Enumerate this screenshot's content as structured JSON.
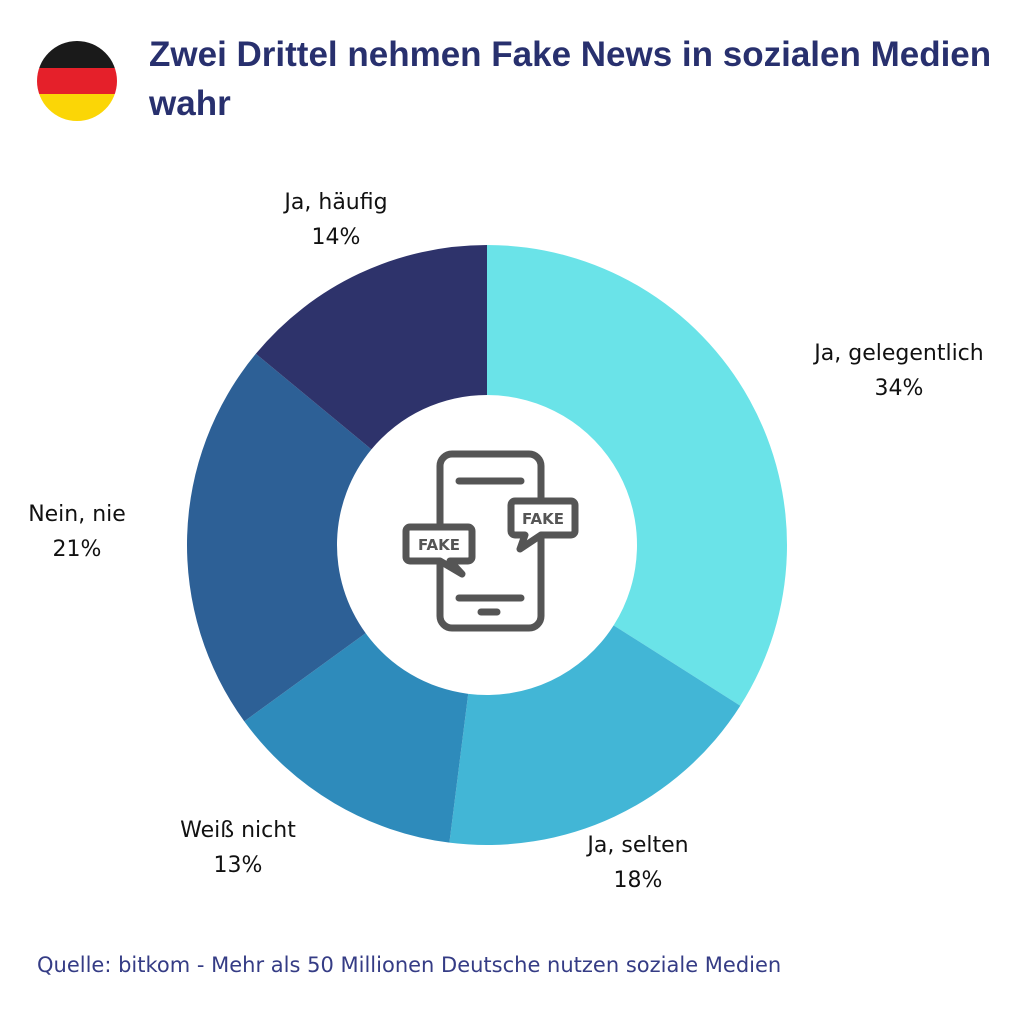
{
  "title": "Zwei Drittel nehmen Fake News in sozialen Medien wahr",
  "flag_colors": [
    "#1a1a1a",
    "#e5202a",
    "#fbd606"
  ],
  "source": "Quelle: bitkom - Mehr als 50 Millionen Deutsche nutzen soziale Medien",
  "icon": {
    "name": "phone-fake-news-icon",
    "bubble_text": "FAKE",
    "color": "#555555"
  },
  "chart_data": {
    "type": "pie",
    "donut": true,
    "start": "top",
    "direction": "clockwise",
    "slices": [
      {
        "label": "Ja, gelegentlich",
        "value": 34,
        "value_label": "34%",
        "color": "#6ae3e8"
      },
      {
        "label": "Ja, selten",
        "value": 18,
        "value_label": "18%",
        "color": "#42b6d6"
      },
      {
        "label": "Weiß nicht",
        "value": 13,
        "value_label": "13%",
        "color": "#2e8bbb"
      },
      {
        "label": "Nein, nie",
        "value": 21,
        "value_label": "21%",
        "color": "#2d6096"
      },
      {
        "label": "Ja, häufig",
        "value": 14,
        "value_label": "14%",
        "color": "#2e336b"
      }
    ]
  }
}
